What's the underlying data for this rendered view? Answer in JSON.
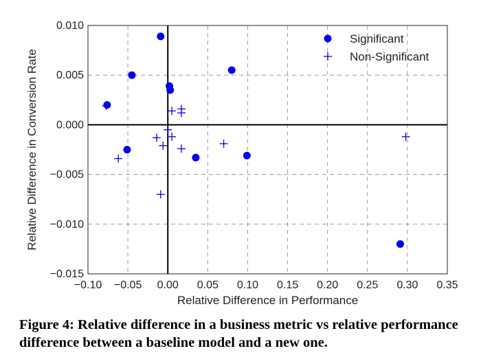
{
  "chart_data": {
    "type": "scatter",
    "xlabel": "Relative Difference in Performance",
    "ylabel": "Relative Difference in Conversion Rate",
    "xlim": [
      -0.1,
      0.35
    ],
    "ylim": [
      -0.015,
      0.01
    ],
    "xticks": [
      "−0.10",
      "−0.05",
      "0.00",
      "0.05",
      "0.10",
      "0.15",
      "0.20",
      "0.25",
      "0.30",
      "0.35"
    ],
    "xtick_values": [
      -0.1,
      -0.05,
      0.0,
      0.05,
      0.1,
      0.15,
      0.2,
      0.25,
      0.3,
      0.35
    ],
    "yticks": [
      "−0.015",
      "−0.010",
      "−0.005",
      "0.000",
      "0.005",
      "0.010"
    ],
    "ytick_values": [
      -0.015,
      -0.01,
      -0.005,
      0.0,
      0.005,
      0.01
    ],
    "grid": true,
    "grid_style": "dashed",
    "zero_lines": true,
    "legend_position": "top-right",
    "series": [
      {
        "name": "Significant",
        "marker": "circle",
        "color": "#0000ee",
        "points": [
          [
            -0.009,
            0.0089
          ],
          [
            -0.045,
            0.005
          ],
          [
            0.08,
            0.0055
          ],
          [
            0.002,
            0.0039
          ],
          [
            0.003,
            0.0035
          ],
          [
            -0.076,
            0.002
          ],
          [
            -0.051,
            -0.0025
          ],
          [
            0.035,
            -0.0033
          ],
          [
            0.099,
            -0.0031
          ],
          [
            0.291,
            -0.012
          ]
        ]
      },
      {
        "name": "Non-Significant",
        "marker": "plus",
        "color": "#0000ee",
        "points": [
          [
            0.005,
            0.0014
          ],
          [
            0.017,
            0.0016
          ],
          [
            0.017,
            0.0012
          ],
          [
            -0.077,
            0.0019
          ],
          [
            0.0,
            -0.0005
          ],
          [
            -0.014,
            -0.0013
          ],
          [
            0.005,
            -0.0012
          ],
          [
            -0.006,
            -0.0021
          ],
          [
            0.017,
            -0.0024
          ],
          [
            0.07,
            -0.0019
          ],
          [
            -0.062,
            -0.0034
          ],
          [
            -0.009,
            -0.007
          ],
          [
            0.298,
            -0.0012
          ]
        ]
      }
    ]
  },
  "caption": "Figure 4: Relative difference in a business metric vs relative performance difference between a baseline model and a new one."
}
